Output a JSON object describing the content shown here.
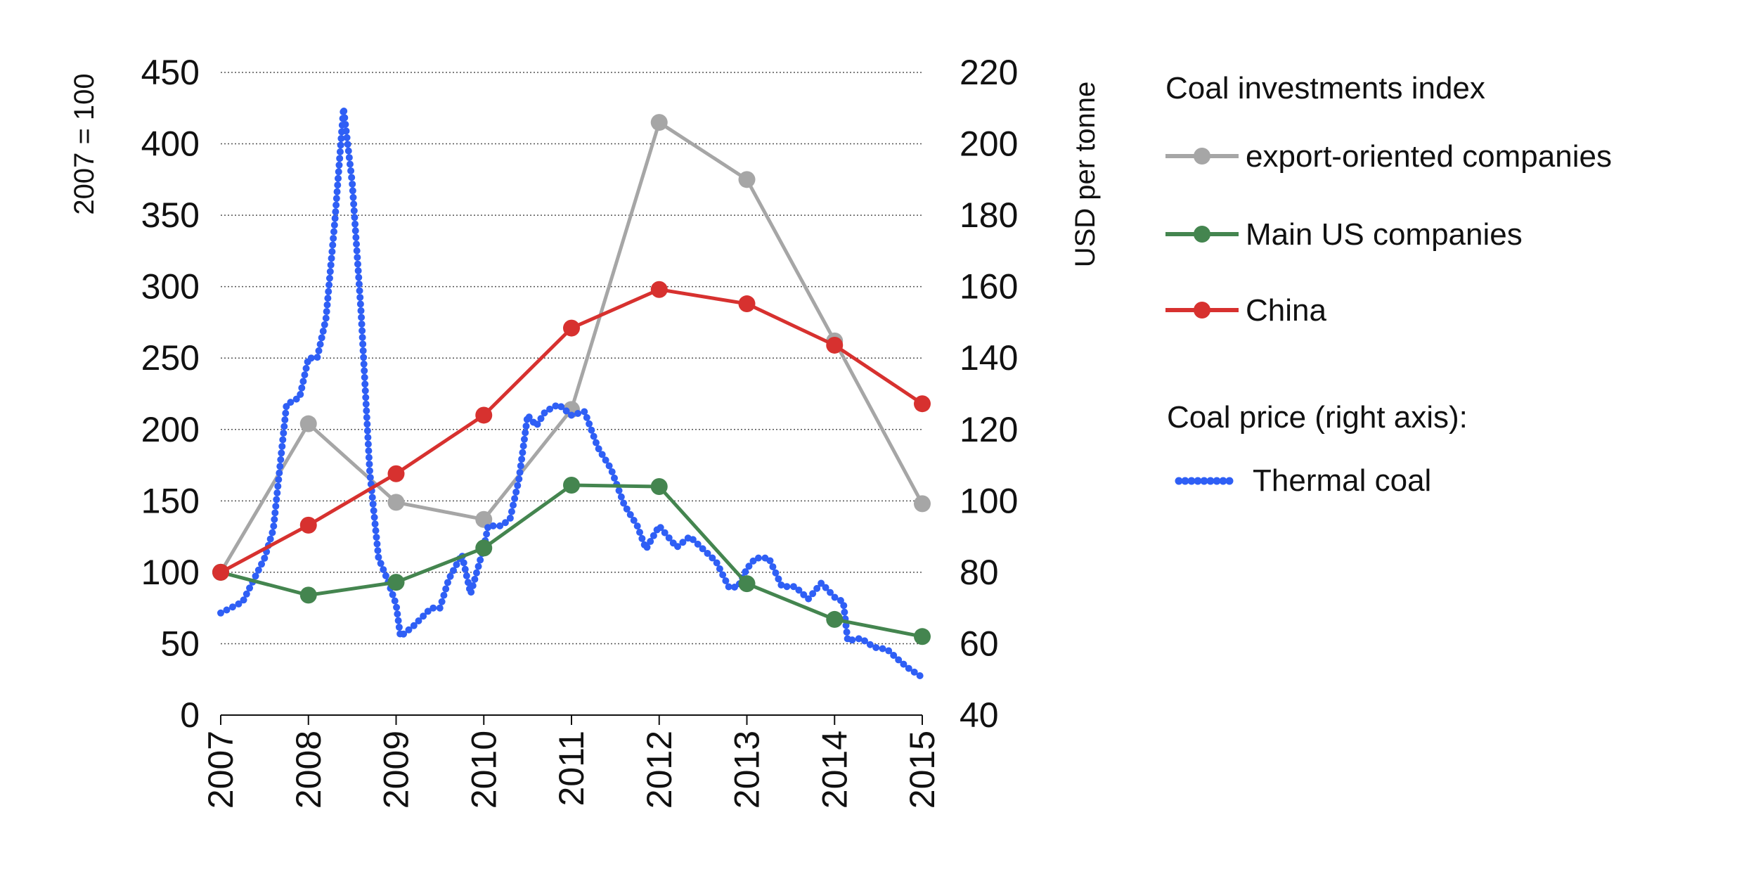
{
  "chart_data": {
    "type": "line",
    "x": [
      2007,
      2008,
      2009,
      2010,
      2011,
      2012,
      2013,
      2014,
      2015
    ],
    "x_tick_labels": [
      "2007",
      "2008",
      "2009",
      "2010",
      "2011",
      "2012",
      "2013",
      "2014",
      "2015"
    ],
    "xlim": [
      2007,
      2015
    ],
    "left_axis": {
      "label": "2007 = 100",
      "ylim": [
        0,
        450
      ],
      "ticks": [
        0,
        50,
        100,
        150,
        200,
        250,
        300,
        350,
        400,
        450
      ]
    },
    "right_axis": {
      "label": "USD per tonne",
      "ylim": [
        40,
        220
      ],
      "ticks": [
        40,
        60,
        80,
        100,
        120,
        140,
        160,
        180,
        200,
        220
      ]
    },
    "grid": true,
    "legend_placement": "right",
    "legend_groups": [
      {
        "title": "Coal investments index",
        "entries": [
          "export-oriented companies",
          "Main US companies",
          "China"
        ]
      },
      {
        "title": "Coal price (right axis):",
        "entries": [
          "Thermal coal"
        ]
      }
    ],
    "series": [
      {
        "name": "export-oriented companies",
        "axis": "left",
        "color": "#a6a6a6",
        "marker": "circle",
        "values": [
          100,
          204,
          149,
          137,
          214,
          415,
          375,
          262,
          148
        ]
      },
      {
        "name": "Main US companies",
        "axis": "left",
        "color": "#44854f",
        "marker": "circle",
        "values": [
          100,
          84,
          93,
          117,
          161,
          160,
          92,
          67,
          55
        ]
      },
      {
        "name": "China",
        "axis": "left",
        "color": "#d7312f",
        "marker": "circle",
        "values": [
          100,
          133,
          169,
          210,
          271,
          298,
          288,
          259,
          218
        ]
      },
      {
        "name": "Thermal coal",
        "axis": "right",
        "color": "#2f5ff5",
        "style": "dotted",
        "x": [
          2007.0,
          2007.25,
          2007.5,
          2007.6,
          2007.75,
          2007.9,
          2008.0,
          2008.1,
          2008.2,
          2008.3,
          2008.4,
          2008.5,
          2008.6,
          2008.7,
          2008.8,
          2008.9,
          2009.0,
          2009.05,
          2009.2,
          2009.4,
          2009.5,
          2009.6,
          2009.75,
          2009.85,
          2010.0,
          2010.05,
          2010.2,
          2010.3,
          2010.4,
          2010.5,
          2010.6,
          2010.7,
          2010.85,
          2011.0,
          2011.15,
          2011.3,
          2011.45,
          2011.6,
          2011.75,
          2011.85,
          2012.0,
          2012.1,
          2012.2,
          2012.35,
          2012.5,
          2012.65,
          2012.8,
          2012.9,
          2013.0,
          2013.1,
          2013.25,
          2013.4,
          2013.55,
          2013.7,
          2013.85,
          2014.0,
          2014.1,
          2014.15,
          2014.3,
          2014.45,
          2014.6,
          2014.75,
          2014.85,
          2015.0
        ],
        "values": [
          68.6,
          71.7,
          84,
          92,
          127,
          129,
          140,
          140,
          151,
          178,
          210,
          189,
          153,
          108,
          84,
          78,
          71,
          62,
          65,
          70,
          70,
          78,
          85,
          74,
          87,
          93,
          93,
          95,
          106,
          124,
          121,
          125,
          127,
          124,
          125,
          115,
          109,
          99,
          93,
          86.5,
          93,
          90,
          87,
          90,
          86.5,
          83,
          75.6,
          76,
          81,
          84,
          84,
          76,
          76,
          72.5,
          77,
          73,
          71.7,
          60.8,
          61.5,
          59,
          58.4,
          55,
          53,
          50.6
        ]
      }
    ]
  }
}
